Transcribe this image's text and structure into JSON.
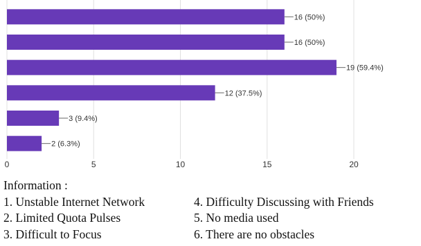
{
  "chart_data": {
    "type": "bar",
    "orientation": "horizontal",
    "categories": [
      "1",
      "2",
      "3",
      "4",
      "5",
      "6"
    ],
    "values": [
      16,
      16,
      19,
      12,
      3,
      2
    ],
    "value_labels": [
      "16 (50%)",
      "16 (50%)",
      "19 (59.4%)",
      "12 (37.5%)",
      "3 (9.4%)",
      "2 (6.3%)"
    ],
    "xlim": [
      0,
      20
    ],
    "x_ticks": [
      0,
      5,
      10,
      15,
      20
    ],
    "x_tick_labels": [
      "0",
      "5",
      "10",
      "15",
      "20"
    ],
    "grid": true,
    "bar_color": "#673ab7"
  },
  "legend": {
    "title": "Information  :",
    "items": [
      "1. Unstable Internet Network",
      "2. Limited Quota Pulses",
      "3. Difficult to Focus",
      "4. Difficulty Discussing with Friends",
      "5. No media used",
      "6. There are no obstacles"
    ]
  }
}
